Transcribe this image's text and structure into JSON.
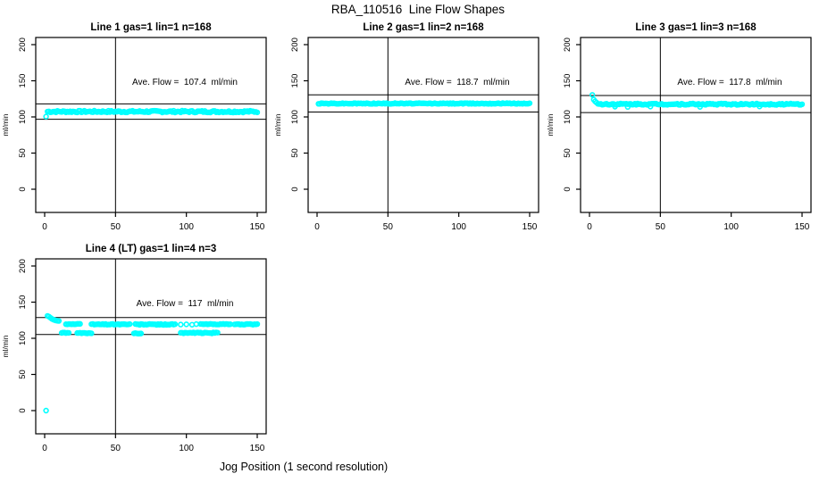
{
  "title": "RBA_110516  Line Flow Shapes",
  "xlabel": "Jog Position (1 second resolution)",
  "colors": {
    "background": "#ffffff",
    "points": "#00ffff",
    "axis": "#000000",
    "reference_lines": "#000000"
  },
  "chart_data": {
    "type": "scatter",
    "layout": "grid 2 rows x 3 cols, 4 panels used",
    "marker": "open-circle",
    "x_range": [
      0,
      155
    ],
    "y_range": [
      0,
      200
    ],
    "xticks": [
      0,
      50,
      100,
      150
    ],
    "yticks": [
      0,
      50,
      100,
      150,
      200
    ],
    "ylabel": "ml/min",
    "vline_x": 50,
    "panels": [
      {
        "title": "Line 1 gas=1 lin=1 n=168",
        "n": 168,
        "ave_flow": 107.4,
        "ave_flow_label": "Ave. Flow =  107.4  ml/min",
        "hlines": [
          118.1,
          96.7
        ],
        "vline": 50,
        "bands": [
          {
            "x_from": 2,
            "x_to": 150,
            "y": 107.4,
            "spread": 1.3
          }
        ],
        "outlier_points": [
          [
            1,
            100.5
          ]
        ]
      },
      {
        "title": "Line 2 gas=1 lin=2 n=168",
        "n": 168,
        "ave_flow": 118.7,
        "ave_flow_label": "Ave. Flow =  118.7  ml/min",
        "hlines": [
          130.6,
          106.8
        ],
        "vline": 50,
        "bands": [
          {
            "x_from": 1,
            "x_to": 150,
            "y": 118.6,
            "spread": 0.6
          }
        ],
        "outlier_points": []
      },
      {
        "title": "Line 3 gas=1 lin=3 n=168",
        "n": 168,
        "ave_flow": 117.8,
        "ave_flow_label": "Ave. Flow =  117.8  ml/min",
        "hlines": [
          129.6,
          106.0
        ],
        "vline": 50,
        "bands": [
          {
            "x_from": 6,
            "x_to": 150,
            "y": 117.6,
            "spread": 1.0
          }
        ],
        "outlier_points": [
          [
            2,
            130.5
          ],
          [
            3,
            124.0
          ],
          [
            4,
            121.5
          ],
          [
            5,
            119.8
          ],
          [
            18,
            114.2
          ],
          [
            27,
            113.8
          ],
          [
            43,
            114.3
          ],
          [
            78,
            113.9
          ],
          [
            120,
            114.5
          ]
        ]
      },
      {
        "title": "Line 4 (LT) gas=1 lin=4 n=3",
        "n": 3,
        "ave_flow": 117,
        "ave_flow_label": "Ave. Flow =  117  ml/min",
        "hlines": [
          128.7,
          105.3
        ],
        "vline": 50,
        "bands": [
          {
            "x_from": 15,
            "x_to": 25,
            "y": 119.6,
            "spread": 0.5
          },
          {
            "x_from": 33,
            "x_to": 60,
            "y": 119.4,
            "spread": 0.6
          },
          {
            "x_from": 64,
            "x_to": 92,
            "y": 119.2,
            "spread": 0.7
          },
          {
            "x_from": 110,
            "x_to": 131,
            "y": 119.5,
            "spread": 0.5
          },
          {
            "x_from": 134,
            "x_to": 150,
            "y": 119.3,
            "spread": 0.5
          },
          {
            "x_from": 12,
            "x_to": 17,
            "y": 107.6,
            "spread": 0.4
          },
          {
            "x_from": 23,
            "x_to": 33,
            "y": 107.2,
            "spread": 0.5
          },
          {
            "x_from": 63,
            "x_to": 68,
            "y": 106.8,
            "spread": 0.4
          },
          {
            "x_from": 96,
            "x_to": 122,
            "y": 107.4,
            "spread": 0.7
          }
        ],
        "outlier_points": [
          [
            1,
            0
          ],
          [
            2,
            131
          ],
          [
            3,
            130
          ],
          [
            4,
            128.5
          ],
          [
            5,
            127
          ],
          [
            6,
            126
          ],
          [
            7,
            125.2
          ],
          [
            8,
            124.6
          ],
          [
            9,
            124.2
          ],
          [
            10,
            124
          ],
          [
            96,
            119.0
          ],
          [
            100,
            119.3
          ],
          [
            104,
            118.8
          ],
          [
            107,
            119.6
          ]
        ]
      }
    ]
  }
}
